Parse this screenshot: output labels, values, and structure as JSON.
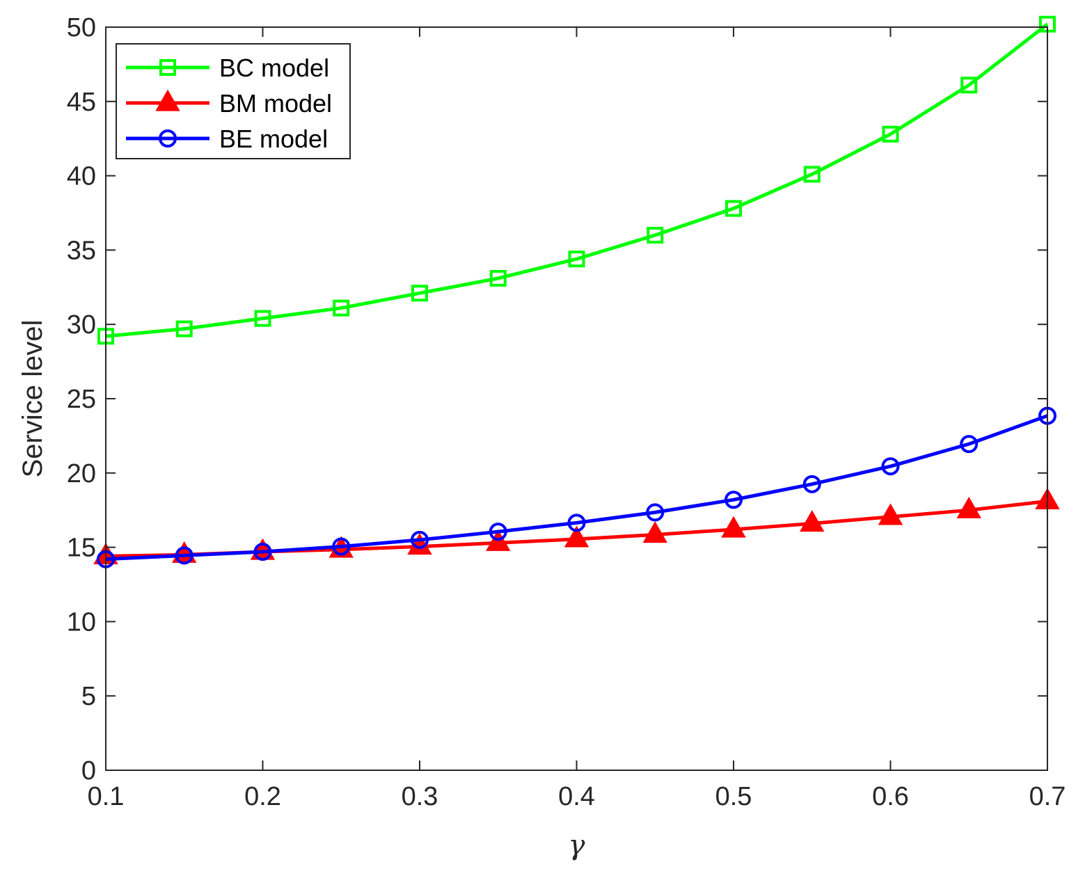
{
  "chart_data": {
    "type": "line",
    "title": "",
    "xlabel": "γ",
    "ylabel": "Service level",
    "xlim": [
      0.1,
      0.7
    ],
    "ylim": [
      0,
      50
    ],
    "x": [
      0.1,
      0.15,
      0.2,
      0.25,
      0.3,
      0.35,
      0.4,
      0.45,
      0.5,
      0.55,
      0.6,
      0.65,
      0.7
    ],
    "x_ticks": [
      "0.1",
      "0.2",
      "0.3",
      "0.4",
      "0.5",
      "0.6",
      "0.7"
    ],
    "x_tick_values": [
      0.1,
      0.2,
      0.3,
      0.4,
      0.5,
      0.6,
      0.7
    ],
    "y_ticks": [
      "0",
      "5",
      "10",
      "15",
      "20",
      "25",
      "30",
      "35",
      "40",
      "45",
      "50"
    ],
    "y_tick_values": [
      0,
      5,
      10,
      15,
      20,
      25,
      30,
      35,
      40,
      45,
      50
    ],
    "grid": false,
    "legend_position": "top-left",
    "series": [
      {
        "name": "BC model",
        "color": "#00ff00",
        "marker": "square",
        "values": [
          29.2,
          29.7,
          30.4,
          31.1,
          32.1,
          33.1,
          34.4,
          36.0,
          37.8,
          40.1,
          42.8,
          46.1,
          50.2
        ]
      },
      {
        "name": "BM model",
        "color": "#ff0000",
        "marker": "triangle",
        "values": [
          14.4,
          14.5,
          14.7,
          14.85,
          15.05,
          15.3,
          15.55,
          15.85,
          16.2,
          16.6,
          17.05,
          17.5,
          18.1
        ]
      },
      {
        "name": "BE model",
        "color": "#0000ff",
        "marker": "circle",
        "values": [
          14.2,
          14.45,
          14.7,
          15.05,
          15.5,
          16.05,
          16.65,
          17.35,
          18.2,
          19.25,
          20.45,
          21.95,
          23.85
        ]
      }
    ]
  }
}
